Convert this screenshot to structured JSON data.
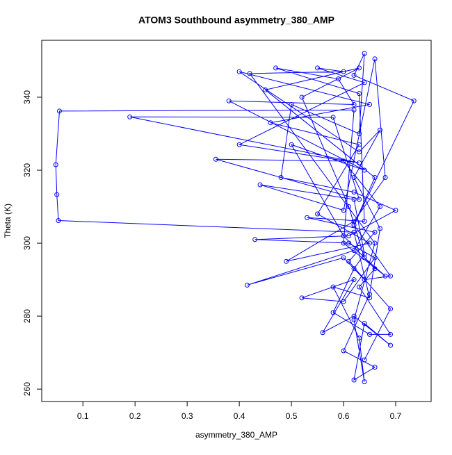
{
  "chart_data": {
    "type": "line",
    "title": "ATOM3 Southbound asymmetry_380_AMP",
    "x_label": "asymmetry_380_AMP",
    "y_label": "Theta (K)",
    "color": "#0000ff",
    "markers": true,
    "x": [
      0.62,
      0.66,
      0.45,
      0.63,
      0.52,
      0.61,
      0.64,
      0.68,
      0.6,
      0.62,
      0.055,
      0.048,
      0.05,
      0.053,
      0.62,
      0.65,
      0.58,
      0.63,
      0.64,
      0.62,
      0.66,
      0.42,
      0.6,
      0.55,
      0.64,
      0.4,
      0.63,
      0.19,
      0.58,
      0.63,
      0.355,
      0.6,
      0.67,
      0.62,
      0.415,
      0.6,
      0.64,
      0.69,
      0.62,
      0.735,
      0.62,
      0.64,
      0.63,
      0.5,
      0.48,
      0.62,
      0.7,
      0.61,
      0.43,
      0.61,
      0.66,
      0.6,
      0.52,
      0.62,
      0.56,
      0.62,
      0.69,
      0.64,
      0.62,
      0.66,
      0.6,
      0.65,
      0.67,
      0.62,
      0.67,
      0.63,
      0.4,
      0.65,
      0.46,
      0.63,
      0.55,
      0.65,
      0.49,
      0.62,
      0.68,
      0.66,
      0.6,
      0.44,
      0.62,
      0.64,
      0.62,
      0.58,
      0.65,
      0.69,
      0.63,
      0.66,
      0.6,
      0.5,
      0.64,
      0.38,
      0.62,
      0.59,
      0.47,
      0.63,
      0.64,
      0.53,
      0.66,
      0.61,
      0.69,
      0.64
    ],
    "values": [
      305,
      318,
      342,
      348,
      340,
      310,
      296,
      291,
      300,
      336.5,
      336.2,
      321.5,
      313.3,
      306.2,
      303,
      285,
      288,
      274,
      262,
      279,
      300,
      346.5,
      347,
      348,
      344,
      327,
      322,
      334.6,
      334.5,
      312,
      323,
      322.5,
      310,
      298,
      288.5,
      296,
      290,
      291,
      305,
      339,
      346,
      352,
      330,
      338,
      318,
      314,
      309,
      302,
      301,
      300,
      296,
      284,
      285,
      290,
      275.5,
      280,
      272,
      278,
      262.5,
      266,
      270.5,
      286,
      304,
      318,
      331,
      325,
      347,
      338,
      333,
      327,
      308,
      300,
      295,
      306,
      318,
      350.5,
      309,
      316,
      312,
      297,
      293,
      281,
      275,
      275,
      288,
      293,
      302,
      327,
      320,
      339,
      338,
      345,
      348,
      341,
      306,
      307,
      303,
      295,
      282,
      268
    ],
    "xlim": [
      0.021,
      0.768
    ],
    "ylim": [
      256.6,
      355.6
    ],
    "xticks": [
      0.1,
      0.2,
      0.3,
      0.4,
      0.5,
      0.6,
      0.7
    ],
    "yticks": [
      260,
      280,
      300,
      320,
      340
    ]
  }
}
